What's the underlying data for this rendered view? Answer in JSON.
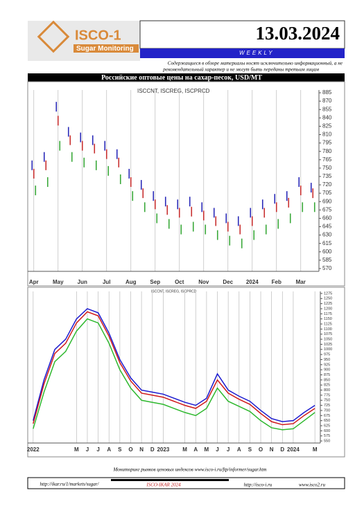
{
  "header": {
    "logo": "ISCO-1",
    "logo_sub": "Sugar Monitoring",
    "date": "13.03.2024",
    "frequency": "WEEKLY",
    "disclaimer_1": "Содержащиеся в обзоре материалы носят исключительно информационный, а не",
    "disclaimer_2": "рекомендательный характер и не могут быть переданы третьим лицам"
  },
  "section_title": "Российские оптовые цены на сахар-песок, USD/MT",
  "chart_data": [
    {
      "type": "scatter",
      "marker": "vline",
      "legend_text": "ISCCNT, ISCREG, ISCPRCD",
      "grid": true,
      "categories": [
        "Apr",
        null,
        "May",
        null,
        "Jun",
        null,
        "Jul",
        null,
        "Aug",
        null,
        "Sep",
        null,
        "Oct",
        null,
        "Nov",
        null,
        "Dec",
        null,
        "2024",
        null,
        "Feb",
        null,
        "Mar",
        null
      ],
      "series": [
        {
          "name": "ISCCNT",
          "color": "#2a2ab8",
          "values": [
            755,
            770,
            860,
            815,
            805,
            800,
            790,
            775,
            740,
            720,
            700,
            690,
            685,
            690,
            680,
            670,
            660,
            655,
            670,
            685,
            695,
            700,
            725,
            715
          ]
        },
        {
          "name": "ISCREG",
          "color": "#c83030",
          "values": [
            740,
            755,
            835,
            800,
            790,
            785,
            775,
            760,
            725,
            705,
            685,
            675,
            670,
            672,
            665,
            655,
            645,
            640,
            655,
            670,
            680,
            688,
            710,
            705
          ]
        },
        {
          "name": "ISCPRCD",
          "color": "#3aa83a",
          "values": [
            710,
            725,
            790,
            770,
            760,
            755,
            745,
            730,
            700,
            680,
            660,
            650,
            640,
            645,
            640,
            630,
            620,
            615,
            630,
            640,
            650,
            660,
            680,
            680
          ]
        }
      ],
      "ylim": [
        565,
        890
      ],
      "yticks": [
        570,
        585,
        600,
        615,
        630,
        645,
        660,
        675,
        690,
        705,
        720,
        735,
        750,
        765,
        780,
        795,
        810,
        825,
        840,
        855,
        870,
        885
      ]
    },
    {
      "type": "line",
      "legend_text": "ISCCNT, ISCREG, ISCPRCD",
      "grid": true,
      "categories": [
        "2022",
        null,
        null,
        null,
        "M",
        "J",
        "J",
        "A",
        "S",
        "O",
        "N",
        "D",
        "2023",
        null,
        "M",
        "A",
        "M",
        "J",
        "J",
        "A",
        "S",
        "O",
        "N",
        "D",
        "2024",
        null,
        "M"
      ],
      "series": [
        {
          "name": "ISCCNT",
          "color": "#1a1ad0",
          "values": [
            650,
            850,
            1000,
            1050,
            1150,
            1200,
            1180,
            1080,
            950,
            860,
            800,
            790,
            780,
            760,
            740,
            725,
            760,
            880,
            800,
            770,
            745,
            700,
            660,
            645,
            650,
            690,
            725
          ]
        },
        {
          "name": "ISCREG",
          "color": "#d01a1a",
          "values": [
            635,
            830,
            980,
            1030,
            1130,
            1185,
            1165,
            1065,
            935,
            845,
            785,
            775,
            765,
            745,
            725,
            710,
            745,
            850,
            785,
            755,
            730,
            685,
            645,
            630,
            635,
            675,
            710
          ]
        },
        {
          "name": "ISCPRCD",
          "color": "#2eb82e",
          "values": [
            610,
            790,
            940,
            990,
            1090,
            1150,
            1130,
            1030,
            900,
            810,
            750,
            740,
            730,
            710,
            690,
            675,
            710,
            810,
            745,
            720,
            695,
            650,
            615,
            605,
            610,
            650,
            690
          ]
        }
      ],
      "ylim": [
        540,
        1285
      ],
      "yticks": [
        550,
        575,
        600,
        625,
        650,
        675,
        700,
        725,
        750,
        775,
        800,
        825,
        850,
        875,
        900,
        925,
        950,
        975,
        1000,
        1025,
        1050,
        1075,
        1100,
        1125,
        1150,
        1175,
        1200,
        1225,
        1250,
        1275
      ]
    }
  ],
  "footer": {
    "note": "Мониторинг рынков ценовых индексов www.isco-i.ru/ftp/informer/sugar.htm",
    "link_1": "http://ikar.ru/1/markets/sugar/",
    "copyright": "ISCO-IKAR 2024",
    "link_2": "http://isco-i.ru",
    "link_3": "www.isco2.ru"
  }
}
